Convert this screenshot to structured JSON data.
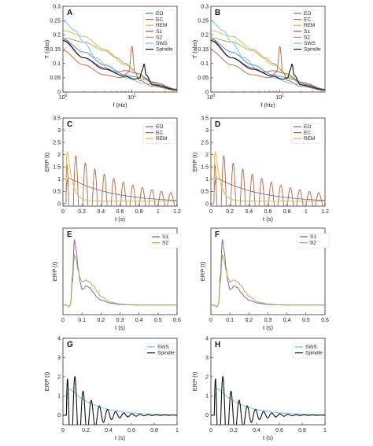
{
  "colors": {
    "EO": "#4a7fb3",
    "EC": "#b5633a",
    "REM": "#e0b040",
    "S1": "#8a4f9e",
    "S2": "#8fae4a",
    "SWS": "#66c1e0",
    "Spindle": "#111111"
  },
  "chart_data": [
    {
      "panel": "A",
      "type": "line",
      "xscale": "log",
      "xlabel": "f (Hz)",
      "ylabel": "T (abs)",
      "xlim": [
        1,
        45
      ],
      "ylim": [
        0,
        0.3
      ],
      "xticks": [
        1,
        10
      ],
      "xticklabels": [
        "10^0",
        "10^1"
      ],
      "yticks": [
        0,
        0.05,
        0.1,
        0.15,
        0.2,
        0.25,
        0.3
      ],
      "yticklabels": [
        "0",
        "0.05",
        "0.1",
        "0.15",
        "0.2",
        "0.25",
        "0.3"
      ],
      "legend": [
        "EO",
        "EC",
        "REM",
        "S1",
        "S2",
        "SWS",
        "Spindle"
      ],
      "series": [
        {
          "name": "EO",
          "x": [
            1,
            2,
            4,
            8,
            10,
            15,
            25,
            45
          ],
          "y": [
            0.185,
            0.14,
            0.095,
            0.06,
            0.055,
            0.045,
            0.025,
            0.008
          ]
        },
        {
          "name": "EC",
          "x": [
            1,
            2,
            4,
            7,
            9,
            10,
            11,
            13,
            20,
            45
          ],
          "y": [
            0.145,
            0.095,
            0.06,
            0.05,
            0.07,
            0.16,
            0.07,
            0.04,
            0.02,
            0.005
          ]
        },
        {
          "name": "REM",
          "x": [
            1,
            2,
            4,
            8,
            15,
            25,
            45
          ],
          "y": [
            0.215,
            0.195,
            0.15,
            0.095,
            0.05,
            0.02,
            0.005
          ]
        },
        {
          "name": "S1",
          "x": [
            1,
            2,
            4,
            6,
            8,
            12,
            20,
            45
          ],
          "y": [
            0.185,
            0.12,
            0.085,
            0.07,
            0.075,
            0.065,
            0.035,
            0.01
          ]
        },
        {
          "name": "S2",
          "x": [
            1,
            2,
            4,
            6,
            8,
            12,
            20,
            45
          ],
          "y": [
            0.19,
            0.175,
            0.145,
            0.12,
            0.1,
            0.065,
            0.03,
            0.008
          ]
        },
        {
          "name": "SWS",
          "x": [
            1,
            1.5,
            2,
            3,
            5,
            8,
            15,
            45
          ],
          "y": [
            0.25,
            0.215,
            0.175,
            0.12,
            0.075,
            0.05,
            0.03,
            0.008
          ]
        },
        {
          "name": "Spindle",
          "x": [
            1,
            2,
            4,
            8,
            11,
            13,
            14,
            15,
            16,
            20,
            45
          ],
          "y": [
            0.18,
            0.12,
            0.08,
            0.055,
            0.045,
            0.05,
            0.075,
            0.098,
            0.06,
            0.025,
            0.008
          ]
        }
      ]
    },
    {
      "panel": "B",
      "type": "line",
      "xscale": "log",
      "xlabel": "f (Hz)",
      "ylabel": "T (abs)",
      "xlim": [
        1,
        45
      ],
      "ylim": [
        0,
        0.3
      ],
      "xticks": [
        1,
        10
      ],
      "xticklabels": [
        "10^0",
        "10^1"
      ],
      "yticks": [
        0,
        0.05,
        0.1,
        0.15,
        0.2,
        0.25,
        0.3
      ],
      "yticklabels": [
        "0",
        "0.05",
        "0.1",
        "0.15",
        "0.2",
        "0.25",
        "0.3"
      ],
      "legend": [
        "EO",
        "EC",
        "REM",
        "S1",
        "S2",
        "SWS",
        "Spindle"
      ],
      "series": [
        {
          "name": "EO",
          "x": [
            1,
            2,
            4,
            8,
            10,
            15,
            25,
            45
          ],
          "y": [
            0.185,
            0.14,
            0.095,
            0.06,
            0.055,
            0.045,
            0.025,
            0.008
          ]
        },
        {
          "name": "EC",
          "x": [
            1,
            2,
            4,
            7,
            9,
            10,
            11,
            13,
            20,
            45
          ],
          "y": [
            0.145,
            0.095,
            0.06,
            0.05,
            0.07,
            0.16,
            0.07,
            0.04,
            0.02,
            0.005
          ]
        },
        {
          "name": "REM",
          "x": [
            1,
            2,
            4,
            8,
            15,
            25,
            45
          ],
          "y": [
            0.215,
            0.195,
            0.15,
            0.095,
            0.05,
            0.02,
            0.005
          ]
        },
        {
          "name": "S1",
          "x": [
            1,
            2,
            4,
            6,
            8,
            12,
            20,
            45
          ],
          "y": [
            0.185,
            0.12,
            0.085,
            0.07,
            0.075,
            0.065,
            0.035,
            0.01
          ]
        },
        {
          "name": "S2",
          "x": [
            1,
            2,
            4,
            6,
            8,
            12,
            20,
            45
          ],
          "y": [
            0.19,
            0.175,
            0.145,
            0.12,
            0.1,
            0.065,
            0.03,
            0.008
          ]
        },
        {
          "name": "SWS",
          "x": [
            1,
            1.5,
            2,
            3,
            5,
            8,
            15,
            45
          ],
          "y": [
            0.25,
            0.215,
            0.175,
            0.12,
            0.075,
            0.05,
            0.03,
            0.008
          ]
        },
        {
          "name": "Spindle",
          "x": [
            1,
            2,
            4,
            8,
            11,
            13,
            14,
            15,
            16,
            20,
            45
          ],
          "y": [
            0.18,
            0.12,
            0.08,
            0.055,
            0.045,
            0.05,
            0.075,
            0.098,
            0.06,
            0.025,
            0.008
          ]
        }
      ]
    },
    {
      "panel": "C",
      "type": "line",
      "xlabel": "t (s)",
      "ylabel": "ERP (t)",
      "xlim": [
        0,
        1.2
      ],
      "ylim": [
        -0.1,
        3.5
      ],
      "xticks": [
        0,
        0.2,
        0.4,
        0.6,
        0.8,
        1,
        1.2
      ],
      "xticklabels": [
        "0",
        "0.2",
        "0.4",
        "0.6",
        "0.8",
        "1",
        "1.2"
      ],
      "yticks": [
        0,
        0.5,
        1,
        1.5,
        2,
        2.5,
        3,
        3.5
      ],
      "yticklabels": [
        "0",
        "0.5",
        "1",
        "1.5",
        "2",
        "2.5",
        "3",
        "3.5"
      ],
      "legend": [
        "EO",
        "EC",
        "REM"
      ],
      "series": [
        {
          "name": "EO",
          "model": "decay",
          "amp": 1.1,
          "tau": 0.45,
          "freq": 0,
          "onset": 0.03,
          "base": 0.05
        },
        {
          "name": "EC",
          "model": "oscillation",
          "amp": 2.2,
          "tau": 0.55,
          "freq": 10,
          "onset": 0.03,
          "base": 0.15
        },
        {
          "name": "REM",
          "model": "decay",
          "amp": 3.3,
          "tau": 0.05,
          "freq": 0,
          "onset": 0.03,
          "base": 0.1
        }
      ]
    },
    {
      "panel": "D",
      "type": "line",
      "xlabel": "t (s)",
      "ylabel": "ERP (t)",
      "xlim": [
        0,
        1.2
      ],
      "ylim": [
        -0.1,
        3.5
      ],
      "xticks": [
        0,
        0.2,
        0.4,
        0.6,
        0.8,
        1,
        1.2
      ],
      "xticklabels": [
        "0",
        "0.2",
        "0.4",
        "0.6",
        "0.8",
        "1",
        "1.2"
      ],
      "yticks": [
        0,
        0.5,
        1,
        1.5,
        2,
        2.5,
        3,
        3.5
      ],
      "yticklabels": [
        "0",
        "0.5",
        "1",
        "1.5",
        "2",
        "2.5",
        "3",
        "3.5"
      ],
      "legend": [
        "EO",
        "EC",
        "REM"
      ],
      "series": [
        {
          "name": "EO",
          "model": "decay",
          "amp": 1.1,
          "tau": 0.45,
          "freq": 0,
          "onset": 0.03,
          "base": 0.05
        },
        {
          "name": "EC",
          "model": "oscillation",
          "amp": 2.2,
          "tau": 0.55,
          "freq": 10,
          "onset": 0.03,
          "base": 0.15
        },
        {
          "name": "REM",
          "model": "decay",
          "amp": 3.3,
          "tau": 0.05,
          "freq": 0,
          "onset": 0.03,
          "base": 0.1
        }
      ]
    },
    {
      "panel": "E",
      "type": "line",
      "xlabel": "t (s)",
      "ylabel": "ERP (t)",
      "xlim": [
        0,
        0.6
      ],
      "ylim": [
        -0.5,
        4
      ],
      "xticks": [
        0,
        0.1,
        0.2,
        0.3,
        0.4,
        0.5,
        0.6
      ],
      "xticklabels": [
        "0",
        "0.1",
        "0.2",
        "0.3",
        "0.4",
        "0.5",
        "0.6"
      ],
      "yticks": [],
      "yticklabels": [],
      "legend": [
        "S1",
        "S2"
      ],
      "series": [
        {
          "name": "S1",
          "x": [
            0,
            0.02,
            0.03,
            0.04,
            0.05,
            0.06,
            0.07,
            0.08,
            0.09,
            0.1,
            0.11,
            0.12,
            0.14,
            0.16,
            0.18,
            0.2,
            0.25,
            0.3,
            0.35,
            0.4,
            0.5,
            0.6
          ],
          "y": [
            0,
            0,
            -0.1,
            0.05,
            1.5,
            3.4,
            2.8,
            1.9,
            1.2,
            0.8,
            0.85,
            1.0,
            0.9,
            0.65,
            0.4,
            0.25,
            0.1,
            0.03,
            0.01,
            0,
            0,
            0
          ]
        },
        {
          "name": "S2",
          "x": [
            0,
            0.02,
            0.03,
            0.04,
            0.05,
            0.06,
            0.07,
            0.08,
            0.09,
            0.1,
            0.11,
            0.12,
            0.14,
            0.16,
            0.18,
            0.2,
            0.25,
            0.3,
            0.35,
            0.4,
            0.5,
            0.6
          ],
          "y": [
            0,
            0,
            -0.1,
            0.05,
            1.2,
            2.6,
            2.3,
            1.8,
            1.4,
            1.2,
            1.25,
            1.3,
            1.2,
            1.0,
            0.7,
            0.45,
            0.15,
            0.05,
            0.01,
            0,
            0,
            0
          ]
        }
      ]
    },
    {
      "panel": "F",
      "type": "line",
      "xlabel": "t (s)",
      "ylabel": "ERP (t)",
      "xlim": [
        0,
        0.6
      ],
      "ylim": [
        -0.5,
        4
      ],
      "xticks": [
        0,
        0.1,
        0.2,
        0.3,
        0.4,
        0.5,
        0.6
      ],
      "xticklabels": [
        "0",
        "0.1",
        "0.2",
        "0.3",
        "0.4",
        "0.5",
        "0.6"
      ],
      "yticks": [],
      "yticklabels": [],
      "legend": [
        "S1",
        "S2"
      ],
      "series": [
        {
          "name": "S1",
          "x": [
            0,
            0.02,
            0.03,
            0.04,
            0.05,
            0.06,
            0.07,
            0.08,
            0.09,
            0.1,
            0.11,
            0.12,
            0.14,
            0.16,
            0.18,
            0.2,
            0.25,
            0.3,
            0.35,
            0.4,
            0.5,
            0.6
          ],
          "y": [
            0,
            0,
            -0.1,
            0.05,
            1.5,
            3.4,
            2.8,
            1.9,
            1.2,
            0.8,
            0.85,
            1.0,
            0.9,
            0.65,
            0.4,
            0.25,
            0.1,
            0.03,
            0.01,
            0,
            0,
            0
          ]
        },
        {
          "name": "S2",
          "x": [
            0,
            0.02,
            0.03,
            0.04,
            0.05,
            0.06,
            0.07,
            0.08,
            0.09,
            0.1,
            0.11,
            0.12,
            0.14,
            0.16,
            0.18,
            0.2,
            0.25,
            0.3,
            0.35,
            0.4,
            0.5,
            0.6
          ],
          "y": [
            0,
            0,
            -0.1,
            0.05,
            1.2,
            2.6,
            2.3,
            1.8,
            1.4,
            1.2,
            1.25,
            1.3,
            1.2,
            1.0,
            0.7,
            0.45,
            0.15,
            0.05,
            0.01,
            0,
            0,
            0
          ]
        }
      ]
    },
    {
      "panel": "G",
      "type": "line",
      "xlabel": "t (s)",
      "ylabel": "ERP (t)",
      "xlim": [
        0,
        1
      ],
      "ylim": [
        -0.5,
        4
      ],
      "xticks": [
        0,
        0.2,
        0.4,
        0.6,
        0.8,
        1
      ],
      "xticklabels": [
        "0",
        "0.2",
        "0.4",
        "0.6",
        "0.8",
        "1"
      ],
      "yticks": [
        0,
        1,
        2,
        3,
        4
      ],
      "yticklabels": [
        "0",
        "1",
        "2",
        "3",
        "4"
      ],
      "legend": [
        "SWS",
        "Spindle"
      ],
      "series": [
        {
          "name": "SWS",
          "model": "decay",
          "amp": 1.6,
          "tau": 0.22,
          "freq": 0,
          "onset": 0.03,
          "base": 0
        },
        {
          "name": "Spindle",
          "model": "oscillation",
          "amp": 3.3,
          "tau": 0.15,
          "freq": 14,
          "onset": 0.03,
          "base": 0
        }
      ]
    },
    {
      "panel": "H",
      "type": "line",
      "xlabel": "t (s)",
      "ylabel": "ERP (t)",
      "xlim": [
        0,
        1
      ],
      "ylim": [
        -0.5,
        4
      ],
      "xticks": [
        0,
        0.2,
        0.4,
        0.6,
        0.8,
        1
      ],
      "xticklabels": [
        "0",
        "0.2",
        "0.4",
        "0.6",
        "0.8",
        "1"
      ],
      "yticks": [
        0,
        1,
        2,
        3,
        4
      ],
      "yticklabels": [
        "0",
        "1",
        "2",
        "3",
        "4"
      ],
      "legend": [
        "SWS",
        "Spindle"
      ],
      "series": [
        {
          "name": "SWS",
          "model": "decay",
          "amp": 1.6,
          "tau": 0.22,
          "freq": 0,
          "onset": 0.03,
          "base": 0
        },
        {
          "name": "Spindle",
          "model": "oscillation",
          "amp": 3.3,
          "tau": 0.15,
          "freq": 14,
          "onset": 0.03,
          "base": 0
        }
      ]
    }
  ]
}
